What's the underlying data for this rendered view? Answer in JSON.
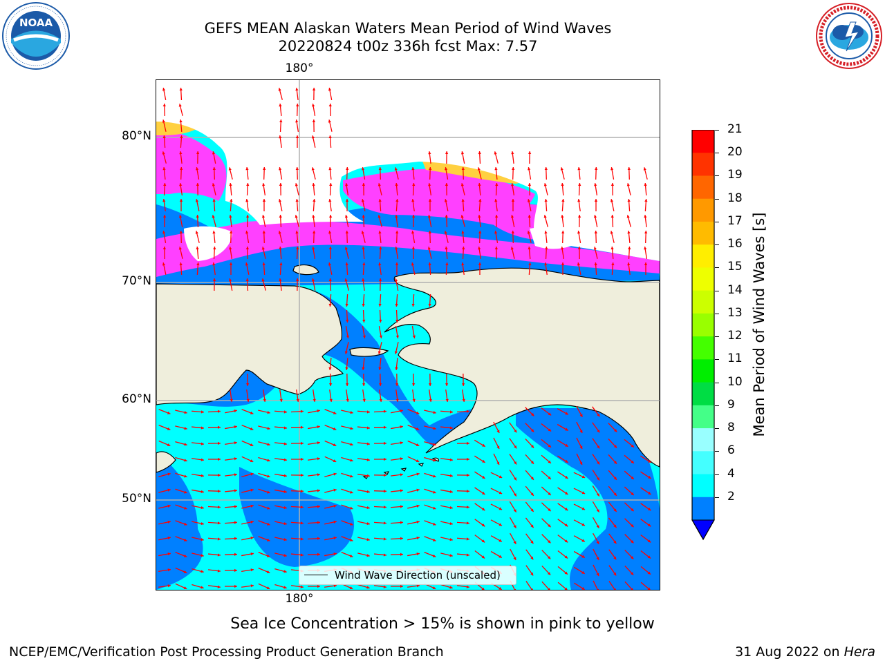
{
  "header": {
    "title_line1": "GEFS MEAN Alaskan Waters Mean Period of Wind Waves",
    "title_line2": "20220824 t00z 336h fcst   Max: 7.57"
  },
  "logos": {
    "left": {
      "text": "NOAA",
      "ring_text": "NATIONAL OCEANIC AND ATMOSPHERIC ADMINISTRATION · U.S. DEPARTMENT OF COMMERCE",
      "color": "#1b5aa8"
    },
    "right": {
      "ring_text": "NATIONAL WEATHER SERVICE",
      "color": "#d62027"
    }
  },
  "map": {
    "lat_labels": [
      "80°N",
      "70°N",
      "60°N",
      "50°N"
    ],
    "lon_label_top": "180°",
    "lon_label_bottom": "180°",
    "legend_label": "Wind Wave Direction (unscaled)",
    "note": "Sea Ice Concentration > 15% is shown in pink to yellow",
    "colors": {
      "land": "#efeedc",
      "ocean_low": "#0080ff",
      "ocean_mid": "#00ffff",
      "ice_pink": "#ff40ff",
      "ice_yellow": "#ffd040",
      "arrow": "#ff0000",
      "grid": "#b0b0b0"
    }
  },
  "colorbar": {
    "title": "Mean Period of Wind Waves [s]",
    "ticks": [
      "21",
      "20",
      "19",
      "18",
      "17",
      "16",
      "15",
      "14",
      "13",
      "12",
      "11",
      "10",
      "9",
      "8",
      "6",
      "4",
      "2"
    ],
    "colors": [
      "#ff0000",
      "#ff3300",
      "#ff6600",
      "#ff9900",
      "#ffbb00",
      "#ffee00",
      "#eeff00",
      "#ccff00",
      "#99ff00",
      "#44ff00",
      "#00ee00",
      "#00dd44",
      "#44ff88",
      "#99ffff",
      "#44ffff",
      "#00ffff",
      "#0080ff"
    ],
    "extend_color": "#0000ff"
  },
  "footer": {
    "left": "NCEP/EMC/Verification Post Processing Product Generation Branch",
    "right_prefix": "31 Aug 2022 on ",
    "right_machine": "Hera"
  }
}
